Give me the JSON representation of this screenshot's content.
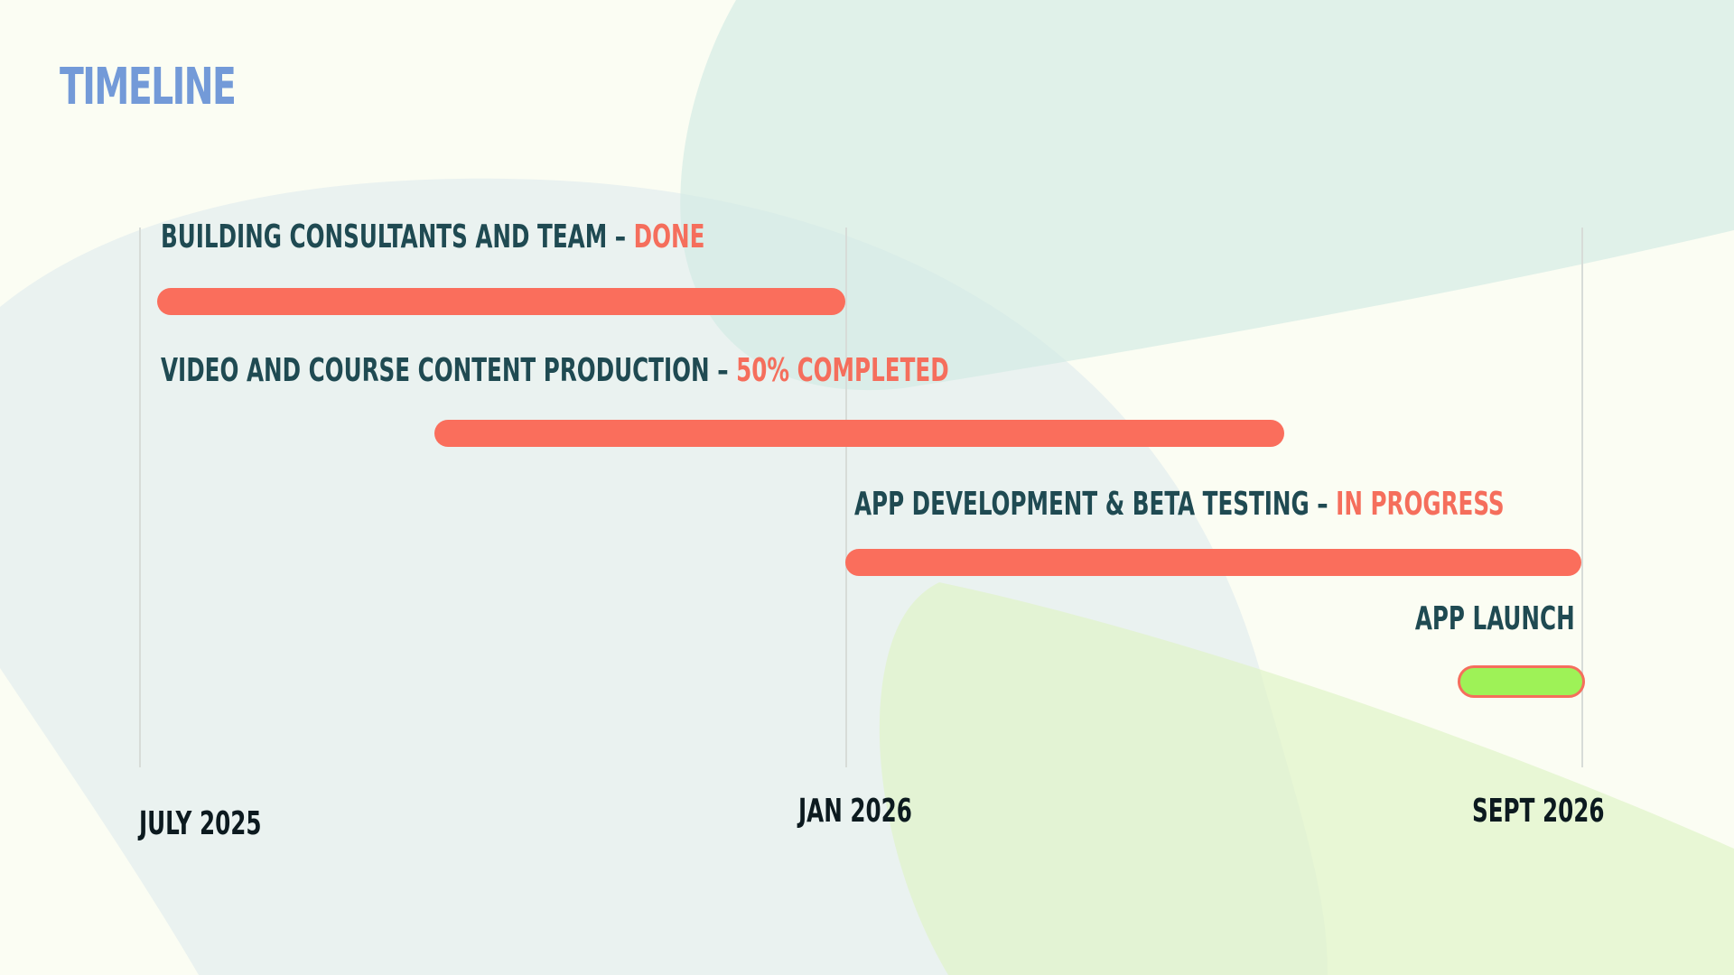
{
  "title": "TIMELINE",
  "colors": {
    "title": "#739ad8",
    "label": "#1f4a52",
    "status": "#f56e5c",
    "bar": "#fa6e5c",
    "launch_fill": "#9ef257",
    "background": "#fbfdf3"
  },
  "timeline": {
    "axis": [
      "JULY 2025",
      "JAN 2026",
      "SEPT 2026"
    ],
    "tasks": [
      {
        "name": "BUILDING CONSULTANTS AND TEAM",
        "separator": " – ",
        "status": "DONE"
      },
      {
        "name": "VIDEO AND COURSE CONTENT PRODUCTION",
        "separator": " – ",
        "status": "50% COMPLETED"
      },
      {
        "name": "APP DEVELOPMENT & BETA TESTING",
        "separator": " – ",
        "status": "IN PROGRESS"
      },
      {
        "name": "APP LAUNCH"
      }
    ]
  }
}
